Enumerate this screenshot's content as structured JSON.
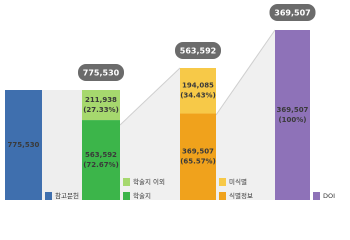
{
  "chart_data": {
    "type": "stacked-bar",
    "bars": [
      {
        "segments": [
          {
            "name": "참고문헌",
            "color": "#3f6fae",
            "value": 775530,
            "value_label": "775,530"
          }
        ]
      },
      {
        "total": 775530,
        "total_label": "775,530",
        "segments": [
          {
            "name": "학술지",
            "color": "#3cb54a",
            "value": 563592,
            "value_label": "563,592",
            "share": 72.67,
            "share_label": "(72.67%)"
          },
          {
            "name": "학술지 이외",
            "color": "#a6d86e",
            "value": 211938,
            "value_label": "211,938",
            "share": 27.33,
            "share_label": "(27.33%)"
          }
        ]
      },
      {
        "total": 563592,
        "total_label": "563,592",
        "segments": [
          {
            "name": "식별정보",
            "color": "#f0a21c",
            "value": 369507,
            "value_label": "369,507",
            "share": 65.57,
            "share_label": "(65.57%)"
          },
          {
            "name": "미식별",
            "color": "#f7c948",
            "value": 194085,
            "value_label": "194,085",
            "share": 34.43,
            "share_label": "(34.43%)"
          }
        ]
      },
      {
        "total": 369507,
        "total_label": "369,507",
        "segments": [
          {
            "name": "DOI",
            "color": "#8e72b8",
            "value": 369507,
            "value_label": "369,507",
            "share": 100,
            "share_label": "(100%)"
          }
        ]
      }
    ]
  }
}
